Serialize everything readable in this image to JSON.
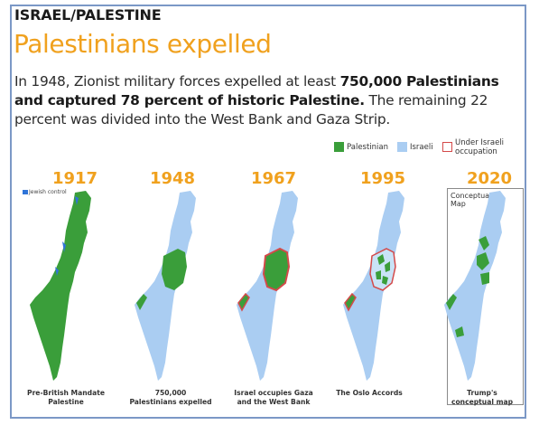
{
  "header": {
    "kicker": "ISRAEL/PALESTINE",
    "headline": "Palestinians expelled",
    "lede_part1": "In 1948, Zionist military forces expelled at least ",
    "lede_bold": "750,000 Palestinians and captured 78 percent of historic Palestine.",
    "lede_part2": " The remaining 22 percent was divided into the West Bank and Gaza Strip."
  },
  "legend": [
    {
      "label": "Palestinian",
      "color": "#3a9e3a"
    },
    {
      "label": "Israeli",
      "color": "#aacdf2"
    },
    {
      "label": "Under Israeli occupation",
      "color": "#ffffff",
      "border": "#d44a4a"
    }
  ],
  "colors": {
    "palestinian": "#3a9e3a",
    "israeli": "#aacdf2",
    "occupation_border": "#d44a4a",
    "jewish_control": "#2f74d8",
    "accent": "#f0a11e"
  },
  "maps": [
    {
      "year": "1917",
      "caption_line1": "Pre-British Mandate",
      "caption_line2": "Palestine",
      "inset_label": "Jewish control"
    },
    {
      "year": "1948",
      "caption_line1": "750,000",
      "caption_line2": "Palestinians expelled"
    },
    {
      "year": "1967",
      "caption_line1": "Israel occupies Gaza",
      "caption_line2": "and the West Bank"
    },
    {
      "year": "1995",
      "caption_line1": "The Oslo Accords",
      "caption_line2": ""
    },
    {
      "year": "2020",
      "caption_line1": "Trump's",
      "caption_line2": "conceptual map",
      "inset_label": "Conceptual Map"
    }
  ]
}
